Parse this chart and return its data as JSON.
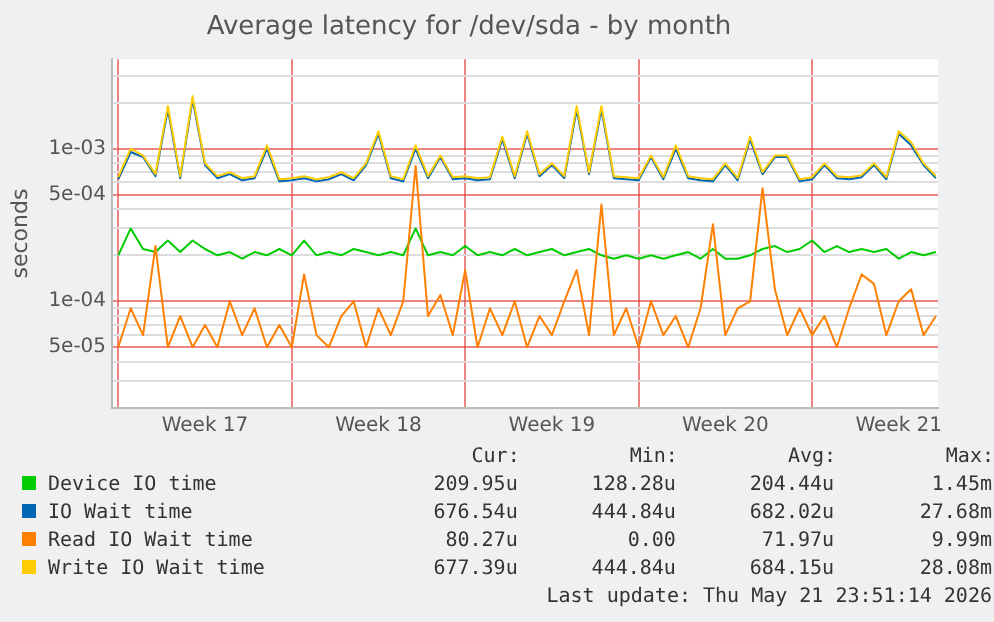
{
  "chart_data": {
    "type": "line",
    "title": "Average latency for /dev/sda - by month",
    "ylabel": "seconds",
    "log": "y",
    "grid": true,
    "legend": "bottom",
    "marker": "none",
    "line_style": "solid",
    "xlim": [
      "2026-04-19T18:00",
      "2026-05-23T02:00"
    ],
    "xticks": [
      {
        "value": "2026-04-20T00:00",
        "label": null
      },
      {
        "value": "2026-04-23T12:00",
        "label": "Week 17"
      },
      {
        "value": "2026-04-27T00:00",
        "label": null
      },
      {
        "value": "2026-04-30T12:00",
        "label": "Week 18"
      },
      {
        "value": "2026-05-04T00:00",
        "label": null
      },
      {
        "value": "2026-05-07T12:00",
        "label": "Week 19"
      },
      {
        "value": "2026-05-11T00:00",
        "label": null
      },
      {
        "value": "2026-05-14T12:00",
        "label": "Week 20"
      },
      {
        "value": "2026-05-18T00:00",
        "label": null
      },
      {
        "value": "2026-05-21T12:00",
        "label": "Week 21"
      }
    ],
    "ylim": [
      2e-05,
      0.00385
    ],
    "yticks": [
      {
        "value": 2e-05,
        "label": null
      },
      {
        "value": 3e-05,
        "label": null
      },
      {
        "value": 4e-05,
        "label": null
      },
      {
        "value": 5e-05,
        "label": "5e-05"
      },
      {
        "value": 6e-05,
        "label": null
      },
      {
        "value": 7e-05,
        "label": null
      },
      {
        "value": 8e-05,
        "label": null
      },
      {
        "value": 9e-05,
        "label": null
      },
      {
        "value": 0.0001,
        "label": "1e-04"
      },
      {
        "value": 0.0002,
        "label": null
      },
      {
        "value": 0.0003,
        "label": null
      },
      {
        "value": 0.0004,
        "label": null
      },
      {
        "value": 0.0005,
        "label": "5e-04"
      },
      {
        "value": 0.0006,
        "label": null
      },
      {
        "value": 0.0007,
        "label": null
      },
      {
        "value": 0.0008,
        "label": null
      },
      {
        "value": 0.0009,
        "label": null
      },
      {
        "value": 0.001,
        "label": "1e-03"
      },
      {
        "value": 0.002,
        "label": null
      },
      {
        "value": 0.003,
        "label": null
      }
    ],
    "x": [
      "2026-04-20T00:00",
      "2026-04-20T12:00",
      "2026-04-21T00:00",
      "2026-04-21T12:00",
      "2026-04-22T00:00",
      "2026-04-22T12:00",
      "2026-04-23T00:00",
      "2026-04-23T12:00",
      "2026-04-24T00:00",
      "2026-04-24T12:00",
      "2026-04-25T00:00",
      "2026-04-25T12:00",
      "2026-04-26T00:00",
      "2026-04-26T12:00",
      "2026-04-27T00:00",
      "2026-04-27T12:00",
      "2026-04-28T00:00",
      "2026-04-28T12:00",
      "2026-04-29T00:00",
      "2026-04-29T12:00",
      "2026-04-30T00:00",
      "2026-04-30T12:00",
      "2026-05-01T00:00",
      "2026-05-01T12:00",
      "2026-05-02T00:00",
      "2026-05-02T12:00",
      "2026-05-03T00:00",
      "2026-05-03T12:00",
      "2026-05-04T00:00",
      "2026-05-04T12:00",
      "2026-05-05T00:00",
      "2026-05-05T12:00",
      "2026-05-06T00:00",
      "2026-05-06T12:00",
      "2026-05-07T00:00",
      "2026-05-07T12:00",
      "2026-05-08T00:00",
      "2026-05-08T12:00",
      "2026-05-09T00:00",
      "2026-05-09T12:00",
      "2026-05-10T00:00",
      "2026-05-10T12:00",
      "2026-05-11T00:00",
      "2026-05-11T12:00",
      "2026-05-12T00:00",
      "2026-05-12T12:00",
      "2026-05-13T00:00",
      "2026-05-13T12:00",
      "2026-05-14T00:00",
      "2026-05-14T12:00",
      "2026-05-15T00:00",
      "2026-05-15T12:00",
      "2026-05-16T00:00",
      "2026-05-16T12:00",
      "2026-05-17T00:00",
      "2026-05-17T12:00",
      "2026-05-18T00:00",
      "2026-05-18T12:00",
      "2026-05-19T00:00",
      "2026-05-19T12:00",
      "2026-05-20T00:00",
      "2026-05-20T12:00",
      "2026-05-21T00:00",
      "2026-05-21T12:00",
      "2026-05-22T00:00",
      "2026-05-22T12:00",
      "2026-05-23T00:00"
    ],
    "series": [
      {
        "name": "Device IO time",
        "color": "#00cc00",
        "values": [
          0.0002,
          0.0003,
          0.00022,
          0.00021,
          0.00025,
          0.00021,
          0.00025,
          0.00022,
          0.0002,
          0.00021,
          0.00019,
          0.00021,
          0.0002,
          0.00022,
          0.0002,
          0.00025,
          0.0002,
          0.00021,
          0.0002,
          0.00022,
          0.00021,
          0.0002,
          0.00021,
          0.0002,
          0.0003,
          0.0002,
          0.00021,
          0.0002,
          0.00023,
          0.0002,
          0.00021,
          0.0002,
          0.00022,
          0.0002,
          0.00021,
          0.00022,
          0.0002,
          0.00021,
          0.00022,
          0.0002,
          0.00019,
          0.0002,
          0.00019,
          0.0002,
          0.00019,
          0.0002,
          0.00021,
          0.00019,
          0.00022,
          0.00019,
          0.00019,
          0.0002,
          0.00022,
          0.00023,
          0.00021,
          0.00022,
          0.00025,
          0.00021,
          0.00023,
          0.00021,
          0.00022,
          0.00021,
          0.00022,
          0.00019,
          0.00021,
          0.0002,
          0.00021
        ]
      },
      {
        "name": "IO Wait time",
        "color": "#0066b3",
        "values": [
          0.00063,
          0.00095,
          0.00088,
          0.00066,
          0.0018,
          0.00064,
          0.0021,
          0.00078,
          0.00064,
          0.00068,
          0.00062,
          0.00064,
          0.001,
          0.00061,
          0.00062,
          0.00064,
          0.00061,
          0.00063,
          0.00068,
          0.00062,
          0.00078,
          0.00125,
          0.00064,
          0.00061,
          0.001,
          0.00064,
          0.00088,
          0.00063,
          0.00064,
          0.00062,
          0.00063,
          0.00115,
          0.00064,
          0.00125,
          0.00066,
          0.00078,
          0.00064,
          0.0018,
          0.00068,
          0.0018,
          0.00064,
          0.00063,
          0.00062,
          0.00088,
          0.00063,
          0.001,
          0.00064,
          0.00062,
          0.00061,
          0.00078,
          0.00062,
          0.00115,
          0.00068,
          0.00088,
          0.00088,
          0.00061,
          0.00063,
          0.00078,
          0.00064,
          0.00063,
          0.00065,
          0.00078,
          0.00063,
          0.00125,
          0.00105,
          0.00078,
          0.00064
        ]
      },
      {
        "name": "Read IO Wait time",
        "color": "#ff8000",
        "values": [
          5e-05,
          9e-05,
          6e-05,
          0.00023,
          5e-05,
          8e-05,
          5e-05,
          7e-05,
          5e-05,
          0.0001,
          6e-05,
          9e-05,
          5e-05,
          7e-05,
          5e-05,
          0.00015,
          6e-05,
          5e-05,
          8e-05,
          0.0001,
          5e-05,
          9e-05,
          6e-05,
          0.0001,
          0.00077,
          8e-05,
          0.00011,
          6e-05,
          0.00016,
          5e-05,
          9e-05,
          6e-05,
          0.0001,
          5e-05,
          8e-05,
          6e-05,
          0.0001,
          0.00016,
          6e-05,
          0.00043,
          6e-05,
          9e-05,
          5e-05,
          0.0001,
          6e-05,
          8e-05,
          5e-05,
          9e-05,
          0.00032,
          6e-05,
          9e-05,
          0.0001,
          0.00055,
          0.00012,
          6e-05,
          9e-05,
          6e-05,
          8e-05,
          5e-05,
          9e-05,
          0.00015,
          0.00013,
          6e-05,
          0.0001,
          0.00012,
          6e-05,
          8e-05
        ]
      },
      {
        "name": "Write IO Wait time",
        "color": "#ffcc00",
        "values": [
          0.00065,
          0.001,
          0.0009,
          0.00068,
          0.0019,
          0.00066,
          0.0022,
          0.0008,
          0.00066,
          0.0007,
          0.00064,
          0.00066,
          0.00105,
          0.00063,
          0.00064,
          0.00066,
          0.00063,
          0.00065,
          0.0007,
          0.00064,
          0.0008,
          0.0013,
          0.00066,
          0.00063,
          0.00105,
          0.00066,
          0.0009,
          0.00065,
          0.00066,
          0.00064,
          0.00065,
          0.0012,
          0.00066,
          0.0013,
          0.00068,
          0.0008,
          0.00066,
          0.0019,
          0.0007,
          0.0019,
          0.00066,
          0.00065,
          0.00064,
          0.0009,
          0.00065,
          0.00105,
          0.00066,
          0.00064,
          0.00063,
          0.0008,
          0.00064,
          0.0012,
          0.0007,
          0.0009,
          0.0009,
          0.00063,
          0.00065,
          0.0008,
          0.00066,
          0.00065,
          0.00067,
          0.0008,
          0.00065,
          0.0013,
          0.0011,
          0.0008,
          0.00066
        ]
      }
    ],
    "annotations": [
      "Cur:",
      "Min:",
      "Avg:",
      "Max:",
      "209.95u",
      "128.28u",
      "204.44u",
      "1.45m",
      "676.54u",
      "444.84u",
      "682.02u",
      "27.68m",
      "80.27u",
      "0.00",
      "71.97u",
      "9.99m",
      "677.39u",
      "444.84u",
      "684.15u",
      "28.08m",
      "Last update: Thu May 21 23:51:14 2026"
    ]
  }
}
